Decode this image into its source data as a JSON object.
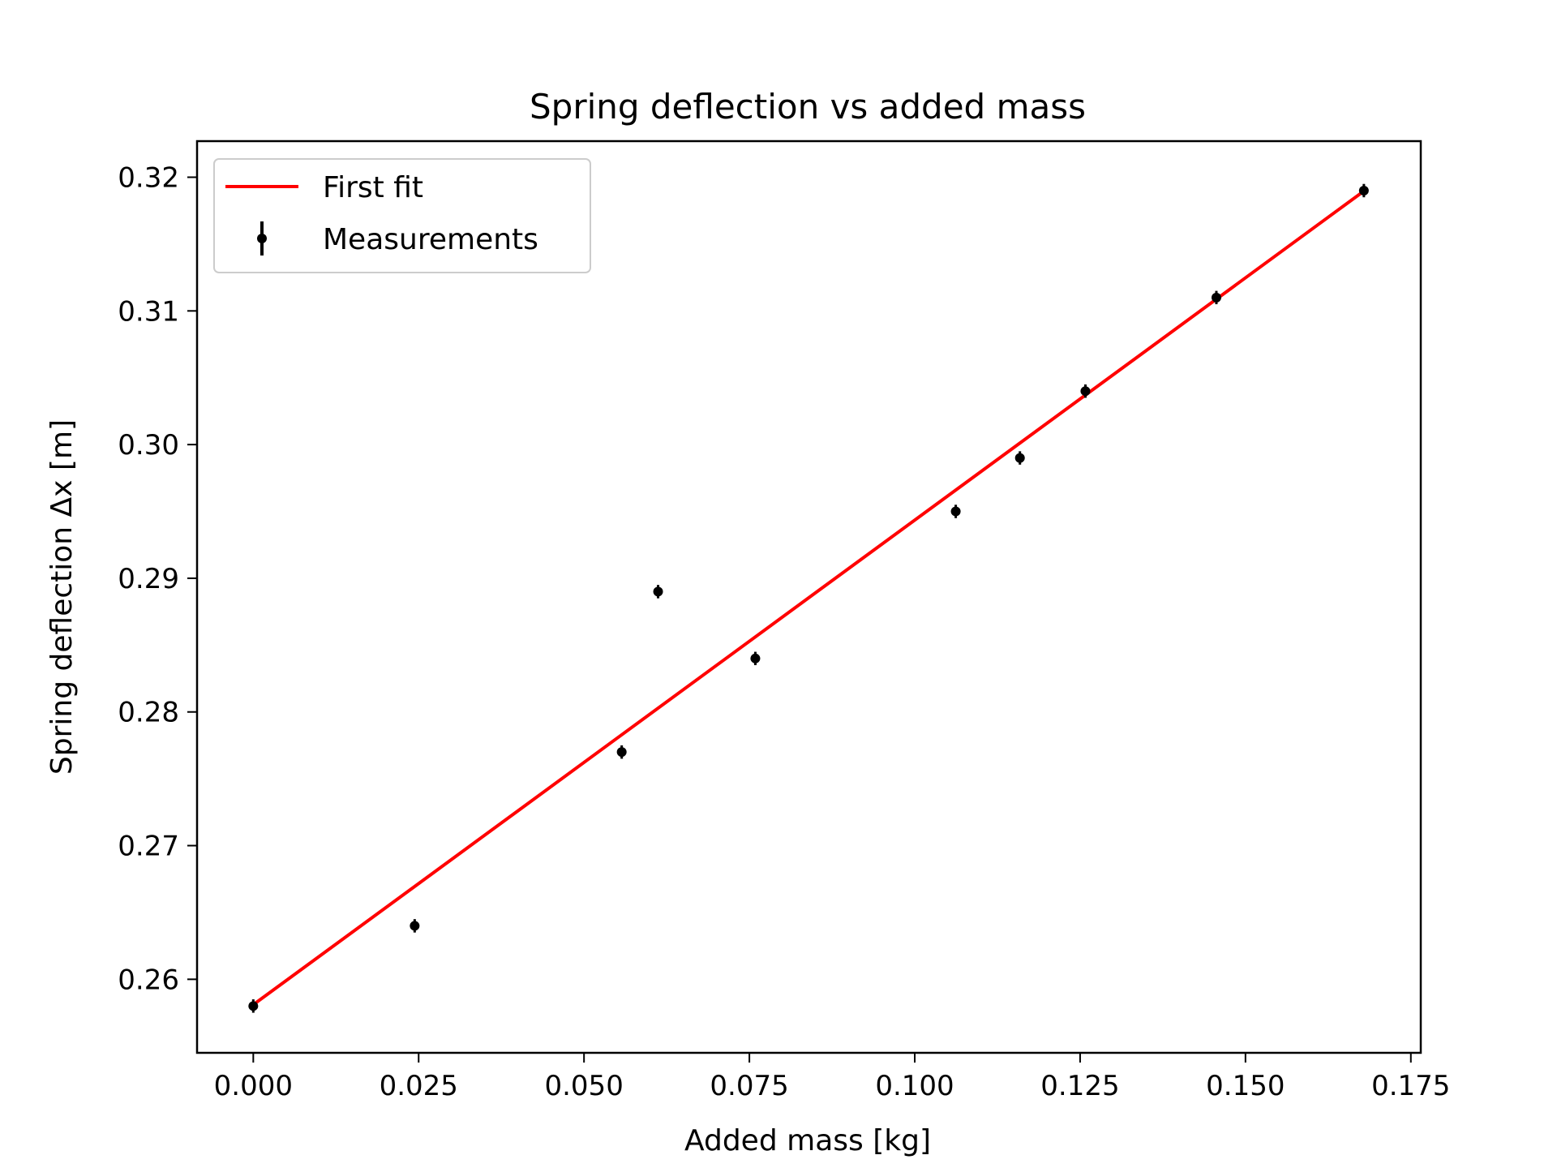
{
  "chart_data": {
    "type": "scatter",
    "title": "Spring deflection vs added mass",
    "xlabel": "Added mass [kg]",
    "ylabel": "Spring deflection Δx [m]",
    "xlim": [
      -0.0085,
      0.1765
    ],
    "ylim": [
      0.2545,
      0.3227
    ],
    "xticks": [
      0.0,
      0.025,
      0.05,
      0.075,
      0.1,
      0.125,
      0.15,
      0.175
    ],
    "xtick_labels": [
      "0.000",
      "0.025",
      "0.050",
      "0.075",
      "0.100",
      "0.125",
      "0.150",
      "0.175"
    ],
    "yticks": [
      0.26,
      0.27,
      0.28,
      0.29,
      0.3,
      0.31,
      0.32
    ],
    "ytick_labels": [
      "0.26",
      "0.27",
      "0.28",
      "0.29",
      "0.30",
      "0.31",
      "0.32"
    ],
    "grid": false,
    "legend_position": "upper-left",
    "series": [
      {
        "name": "First fit",
        "kind": "line",
        "color": "#ff0000",
        "x": [
          0.0,
          0.168
        ],
        "y": [
          0.2581,
          0.319
        ]
      },
      {
        "name": "Measurements",
        "kind": "errorbar",
        "color": "#000000",
        "x": [
          0.0,
          0.0244,
          0.0557,
          0.0612,
          0.0759,
          0.1062,
          0.1159,
          0.1258,
          0.1456,
          0.1679
        ],
        "y": [
          0.258,
          0.264,
          0.277,
          0.289,
          0.284,
          0.295,
          0.299,
          0.304,
          0.311,
          0.319
        ],
        "yerr": [
          0.0005,
          0.0005,
          0.0005,
          0.0005,
          0.0005,
          0.0005,
          0.0005,
          0.0005,
          0.0005,
          0.0005
        ]
      }
    ]
  }
}
